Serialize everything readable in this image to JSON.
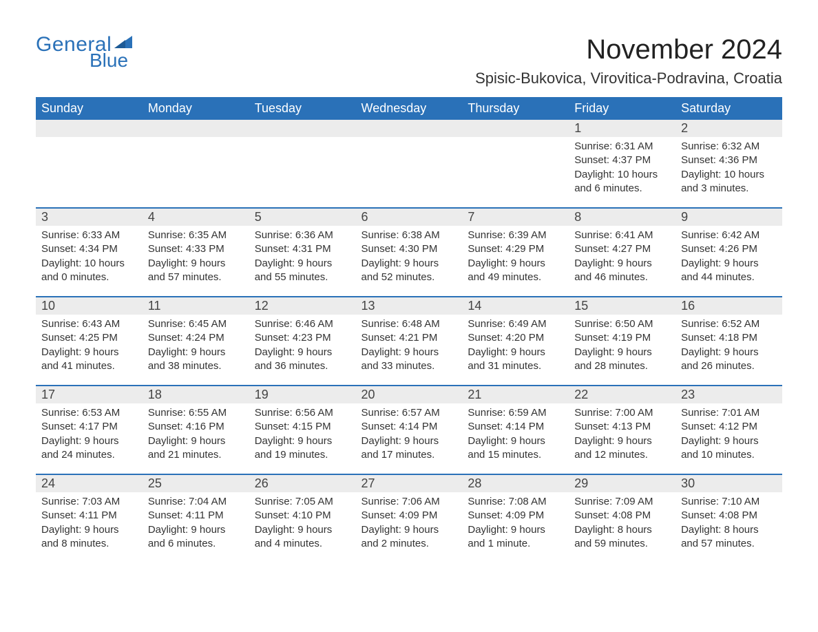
{
  "brand": {
    "part1": "General",
    "part2": "Blue",
    "color": "#2a71b8"
  },
  "title": "November 2024",
  "location": "Spisic-Bukovica, Virovitica-Podravina, Croatia",
  "colors": {
    "header_bg": "#2a71b8",
    "header_text": "#ffffff",
    "daynum_bg": "#ececec",
    "text": "#333333",
    "page_bg": "#ffffff"
  },
  "fonts": {
    "title_size_pt": 30,
    "location_size_pt": 17,
    "header_size_pt": 14,
    "body_size_pt": 11
  },
  "day_headers": [
    "Sunday",
    "Monday",
    "Tuesday",
    "Wednesday",
    "Thursday",
    "Friday",
    "Saturday"
  ],
  "weeks": [
    [
      null,
      null,
      null,
      null,
      null,
      {
        "n": "1",
        "sunrise": "Sunrise: 6:31 AM",
        "sunset": "Sunset: 4:37 PM",
        "day1": "Daylight: 10 hours",
        "day2": "and 6 minutes."
      },
      {
        "n": "2",
        "sunrise": "Sunrise: 6:32 AM",
        "sunset": "Sunset: 4:36 PM",
        "day1": "Daylight: 10 hours",
        "day2": "and 3 minutes."
      }
    ],
    [
      {
        "n": "3",
        "sunrise": "Sunrise: 6:33 AM",
        "sunset": "Sunset: 4:34 PM",
        "day1": "Daylight: 10 hours",
        "day2": "and 0 minutes."
      },
      {
        "n": "4",
        "sunrise": "Sunrise: 6:35 AM",
        "sunset": "Sunset: 4:33 PM",
        "day1": "Daylight: 9 hours",
        "day2": "and 57 minutes."
      },
      {
        "n": "5",
        "sunrise": "Sunrise: 6:36 AM",
        "sunset": "Sunset: 4:31 PM",
        "day1": "Daylight: 9 hours",
        "day2": "and 55 minutes."
      },
      {
        "n": "6",
        "sunrise": "Sunrise: 6:38 AM",
        "sunset": "Sunset: 4:30 PM",
        "day1": "Daylight: 9 hours",
        "day2": "and 52 minutes."
      },
      {
        "n": "7",
        "sunrise": "Sunrise: 6:39 AM",
        "sunset": "Sunset: 4:29 PM",
        "day1": "Daylight: 9 hours",
        "day2": "and 49 minutes."
      },
      {
        "n": "8",
        "sunrise": "Sunrise: 6:41 AM",
        "sunset": "Sunset: 4:27 PM",
        "day1": "Daylight: 9 hours",
        "day2": "and 46 minutes."
      },
      {
        "n": "9",
        "sunrise": "Sunrise: 6:42 AM",
        "sunset": "Sunset: 4:26 PM",
        "day1": "Daylight: 9 hours",
        "day2": "and 44 minutes."
      }
    ],
    [
      {
        "n": "10",
        "sunrise": "Sunrise: 6:43 AM",
        "sunset": "Sunset: 4:25 PM",
        "day1": "Daylight: 9 hours",
        "day2": "and 41 minutes."
      },
      {
        "n": "11",
        "sunrise": "Sunrise: 6:45 AM",
        "sunset": "Sunset: 4:24 PM",
        "day1": "Daylight: 9 hours",
        "day2": "and 38 minutes."
      },
      {
        "n": "12",
        "sunrise": "Sunrise: 6:46 AM",
        "sunset": "Sunset: 4:23 PM",
        "day1": "Daylight: 9 hours",
        "day2": "and 36 minutes."
      },
      {
        "n": "13",
        "sunrise": "Sunrise: 6:48 AM",
        "sunset": "Sunset: 4:21 PM",
        "day1": "Daylight: 9 hours",
        "day2": "and 33 minutes."
      },
      {
        "n": "14",
        "sunrise": "Sunrise: 6:49 AM",
        "sunset": "Sunset: 4:20 PM",
        "day1": "Daylight: 9 hours",
        "day2": "and 31 minutes."
      },
      {
        "n": "15",
        "sunrise": "Sunrise: 6:50 AM",
        "sunset": "Sunset: 4:19 PM",
        "day1": "Daylight: 9 hours",
        "day2": "and 28 minutes."
      },
      {
        "n": "16",
        "sunrise": "Sunrise: 6:52 AM",
        "sunset": "Sunset: 4:18 PM",
        "day1": "Daylight: 9 hours",
        "day2": "and 26 minutes."
      }
    ],
    [
      {
        "n": "17",
        "sunrise": "Sunrise: 6:53 AM",
        "sunset": "Sunset: 4:17 PM",
        "day1": "Daylight: 9 hours",
        "day2": "and 24 minutes."
      },
      {
        "n": "18",
        "sunrise": "Sunrise: 6:55 AM",
        "sunset": "Sunset: 4:16 PM",
        "day1": "Daylight: 9 hours",
        "day2": "and 21 minutes."
      },
      {
        "n": "19",
        "sunrise": "Sunrise: 6:56 AM",
        "sunset": "Sunset: 4:15 PM",
        "day1": "Daylight: 9 hours",
        "day2": "and 19 minutes."
      },
      {
        "n": "20",
        "sunrise": "Sunrise: 6:57 AM",
        "sunset": "Sunset: 4:14 PM",
        "day1": "Daylight: 9 hours",
        "day2": "and 17 minutes."
      },
      {
        "n": "21",
        "sunrise": "Sunrise: 6:59 AM",
        "sunset": "Sunset: 4:14 PM",
        "day1": "Daylight: 9 hours",
        "day2": "and 15 minutes."
      },
      {
        "n": "22",
        "sunrise": "Sunrise: 7:00 AM",
        "sunset": "Sunset: 4:13 PM",
        "day1": "Daylight: 9 hours",
        "day2": "and 12 minutes."
      },
      {
        "n": "23",
        "sunrise": "Sunrise: 7:01 AM",
        "sunset": "Sunset: 4:12 PM",
        "day1": "Daylight: 9 hours",
        "day2": "and 10 minutes."
      }
    ],
    [
      {
        "n": "24",
        "sunrise": "Sunrise: 7:03 AM",
        "sunset": "Sunset: 4:11 PM",
        "day1": "Daylight: 9 hours",
        "day2": "and 8 minutes."
      },
      {
        "n": "25",
        "sunrise": "Sunrise: 7:04 AM",
        "sunset": "Sunset: 4:11 PM",
        "day1": "Daylight: 9 hours",
        "day2": "and 6 minutes."
      },
      {
        "n": "26",
        "sunrise": "Sunrise: 7:05 AM",
        "sunset": "Sunset: 4:10 PM",
        "day1": "Daylight: 9 hours",
        "day2": "and 4 minutes."
      },
      {
        "n": "27",
        "sunrise": "Sunrise: 7:06 AM",
        "sunset": "Sunset: 4:09 PM",
        "day1": "Daylight: 9 hours",
        "day2": "and 2 minutes."
      },
      {
        "n": "28",
        "sunrise": "Sunrise: 7:08 AM",
        "sunset": "Sunset: 4:09 PM",
        "day1": "Daylight: 9 hours",
        "day2": "and 1 minute."
      },
      {
        "n": "29",
        "sunrise": "Sunrise: 7:09 AM",
        "sunset": "Sunset: 4:08 PM",
        "day1": "Daylight: 8 hours",
        "day2": "and 59 minutes."
      },
      {
        "n": "30",
        "sunrise": "Sunrise: 7:10 AM",
        "sunset": "Sunset: 4:08 PM",
        "day1": "Daylight: 8 hours",
        "day2": "and 57 minutes."
      }
    ]
  ]
}
